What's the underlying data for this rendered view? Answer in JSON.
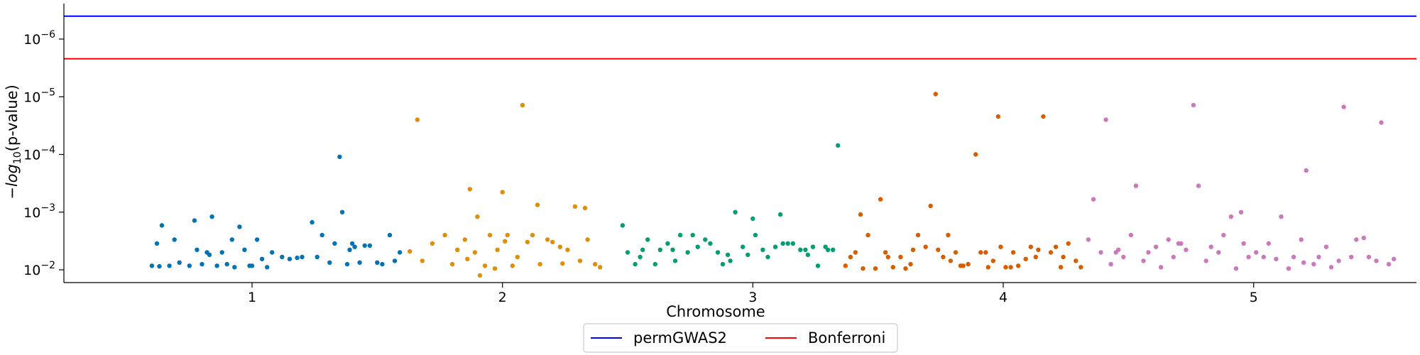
{
  "chart_data": {
    "type": "scatter",
    "xlabel": "Chromosome",
    "ylabel_prefix": "−log",
    "ylabel_sub": "10",
    "ylabel_suffix": "(p-value)",
    "y_scale": "log-inverted",
    "y_ticks": [
      {
        "value": 1e-06,
        "base": "10",
        "exp": "−6"
      },
      {
        "value": 1e-05,
        "base": "10",
        "exp": "−5"
      },
      {
        "value": 0.0001,
        "base": "10",
        "exp": "−4"
      },
      {
        "value": 0.001,
        "base": "10",
        "exp": "−3"
      },
      {
        "value": 0.01,
        "base": "10",
        "exp": "−2"
      }
    ],
    "x_ticks": [
      {
        "label": "1",
        "pos": 1.0
      },
      {
        "label": "2",
        "pos": 2.0
      },
      {
        "label": "3",
        "pos": 3.0
      },
      {
        "label": "4",
        "pos": 4.0
      },
      {
        "label": "5",
        "pos": 5.0
      }
    ],
    "thresholds": [
      {
        "name": "permGWAS2",
        "value": 4e-07,
        "color": "#0000ff"
      },
      {
        "name": "Bonferroni",
        "value": 2.2e-06,
        "color": "#ff0000"
      }
    ],
    "legend_position": "bottom-center",
    "series": [
      {
        "chromosome": "1",
        "color": "#0173b2",
        "x": [
          0.6,
          0.62,
          0.64,
          0.67,
          0.69,
          0.75,
          0.77,
          0.8,
          0.82,
          0.84,
          0.86,
          0.88,
          0.9,
          0.93,
          0.95,
          0.97,
          1.0,
          1.02,
          1.04,
          1.06,
          1.08,
          1.12,
          1.15,
          1.18,
          1.2,
          1.24,
          1.28,
          1.31,
          1.33,
          1.35,
          1.36,
          1.38,
          1.4,
          1.41,
          1.43,
          1.45,
          1.47,
          1.5,
          1.52,
          1.55,
          1.57,
          1.59,
          0.63,
          0.71,
          0.78,
          0.83,
          0.92,
          0.99,
          1.26,
          1.39
        ],
        "y": [
          0.0085,
          0.0035,
          0.0017,
          0.0085,
          0.003,
          0.0085,
          0.0014,
          0.008,
          0.005,
          0.0012,
          0.0085,
          0.005,
          0.008,
          0.009,
          0.0018,
          0.0045,
          0.0085,
          0.003,
          0.0065,
          0.009,
          0.005,
          0.006,
          0.0065,
          0.0062,
          0.006,
          0.0015,
          0.0025,
          0.0075,
          0.0035,
          0.00011,
          0.001,
          0.008,
          0.0035,
          0.004,
          0.0075,
          0.0038,
          0.0038,
          0.0075,
          0.008,
          0.0025,
          0.007,
          0.005,
          0.0087,
          0.0075,
          0.0045,
          0.0055,
          0.003,
          0.0085,
          0.006,
          0.0045
        ]
      },
      {
        "chromosome": "2",
        "color": "#de8f05",
        "x": [
          1.63,
          1.66,
          1.68,
          1.72,
          1.77,
          1.8,
          1.82,
          1.85,
          1.87,
          1.89,
          1.91,
          1.93,
          1.95,
          1.98,
          2.0,
          2.02,
          2.04,
          2.06,
          2.08,
          2.1,
          2.12,
          2.15,
          2.18,
          2.2,
          2.23,
          2.26,
          2.29,
          2.31,
          2.34,
          2.37,
          2.39,
          1.9,
          2.01,
          2.14,
          2.24,
          2.33,
          1.86,
          1.97
        ],
        "y": [
          0.0048,
          2.5e-05,
          0.007,
          0.0035,
          0.0025,
          0.008,
          0.0045,
          0.003,
          0.0004,
          0.005,
          0.0125,
          0.0085,
          0.0025,
          0.0045,
          0.00045,
          0.0025,
          0.0085,
          0.006,
          1.4e-05,
          0.0033,
          0.0025,
          0.008,
          0.003,
          0.0033,
          0.004,
          0.0045,
          0.0008,
          0.007,
          0.003,
          0.008,
          0.009,
          0.0012,
          0.0032,
          0.00075,
          0.0078,
          0.00085,
          0.0065,
          0.0095
        ]
      },
      {
        "chromosome": "3",
        "color": "#029e73",
        "x": [
          2.48,
          2.5,
          2.53,
          2.56,
          2.58,
          2.61,
          2.63,
          2.66,
          2.69,
          2.71,
          2.74,
          2.76,
          2.78,
          2.81,
          2.83,
          2.86,
          2.88,
          2.91,
          2.93,
          2.96,
          2.98,
          3.01,
          3.04,
          3.06,
          3.09,
          3.11,
          3.14,
          3.16,
          3.19,
          3.21,
          3.24,
          3.26,
          3.29,
          3.32,
          3.34,
          2.55,
          2.68,
          2.9,
          3.0,
          3.12,
          3.22,
          3.3
        ],
        "y": [
          0.0017,
          0.005,
          0.008,
          0.0045,
          0.003,
          0.008,
          0.0045,
          0.0035,
          0.007,
          0.0025,
          0.005,
          0.0025,
          0.004,
          0.003,
          0.0035,
          0.005,
          0.008,
          0.007,
          0.001,
          0.004,
          0.0055,
          0.0025,
          0.0045,
          0.006,
          0.004,
          0.0011,
          0.0035,
          0.0035,
          0.0045,
          0.0045,
          0.004,
          0.0085,
          0.004,
          0.0045,
          7e-05,
          0.006,
          0.0045,
          0.0055,
          0.0013,
          0.0035,
          0.0055,
          0.0045
        ]
      },
      {
        "chromosome": "4",
        "color": "#d55e00",
        "x": [
          3.37,
          3.39,
          3.41,
          3.44,
          3.46,
          3.49,
          3.51,
          3.54,
          3.56,
          3.59,
          3.61,
          3.64,
          3.66,
          3.69,
          3.71,
          3.74,
          3.76,
          3.79,
          3.81,
          3.84,
          3.86,
          3.89,
          3.91,
          3.94,
          3.96,
          3.99,
          4.01,
          4.04,
          4.06,
          4.09,
          4.11,
          4.14,
          4.16,
          4.19,
          4.21,
          4.24,
          4.26,
          4.29,
          4.31,
          3.43,
          3.53,
          3.63,
          3.73,
          3.83,
          3.93,
          4.03,
          4.13,
          4.23,
          3.78,
          3.98
        ],
        "y": [
          0.0085,
          0.006,
          0.005,
          0.0095,
          0.0025,
          0.0095,
          0.0006,
          0.006,
          0.009,
          0.006,
          0.0095,
          0.0045,
          0.0025,
          0.004,
          0.00078,
          0.0045,
          0.006,
          0.007,
          0.005,
          0.0085,
          0.008,
          0.0001,
          0.005,
          0.009,
          0.007,
          0.004,
          0.009,
          0.005,
          0.0085,
          0.0065,
          0.004,
          0.0045,
          2.2e-05,
          0.005,
          0.004,
          0.006,
          0.0035,
          0.007,
          0.009,
          0.0011,
          0.005,
          0.008,
          9e-06,
          0.0085,
          0.005,
          0.009,
          0.006,
          0.009,
          0.0025,
          2.2e-05
        ]
      },
      {
        "chromosome": "5",
        "color": "#cc78bc",
        "x": [
          4.34,
          4.36,
          4.39,
          4.41,
          4.43,
          4.46,
          4.48,
          4.51,
          4.53,
          4.56,
          4.58,
          4.61,
          4.63,
          4.66,
          4.68,
          4.71,
          4.73,
          4.76,
          4.78,
          4.81,
          4.83,
          4.86,
          4.88,
          4.91,
          4.93,
          4.96,
          4.98,
          5.01,
          5.04,
          5.06,
          5.09,
          5.11,
          5.14,
          5.16,
          5.19,
          5.21,
          5.24,
          5.26,
          5.29,
          5.31,
          5.34,
          5.36,
          5.39,
          5.41,
          5.44,
          5.46,
          5.49,
          5.51,
          5.54,
          5.56,
          4.45,
          4.7,
          4.95,
          5.2
        ],
        "y": [
          0.003,
          0.0006,
          0.005,
          2.5e-05,
          0.008,
          0.0045,
          0.006,
          0.0025,
          0.00035,
          0.007,
          0.005,
          0.004,
          0.009,
          0.003,
          0.006,
          0.0035,
          0.0045,
          1.4e-05,
          0.00035,
          0.007,
          0.004,
          0.005,
          0.0025,
          0.0012,
          0.0095,
          0.0035,
          0.006,
          0.005,
          0.006,
          0.0035,
          0.0065,
          0.0012,
          0.0095,
          0.006,
          0.003,
          0.00019,
          0.008,
          0.006,
          0.004,
          0.009,
          0.007,
          1.5e-05,
          0.006,
          0.003,
          0.0028,
          0.006,
          0.007,
          2.8e-05,
          0.008,
          0.0065,
          0.005,
          0.0035,
          0.001,
          0.0075
        ]
      }
    ]
  }
}
